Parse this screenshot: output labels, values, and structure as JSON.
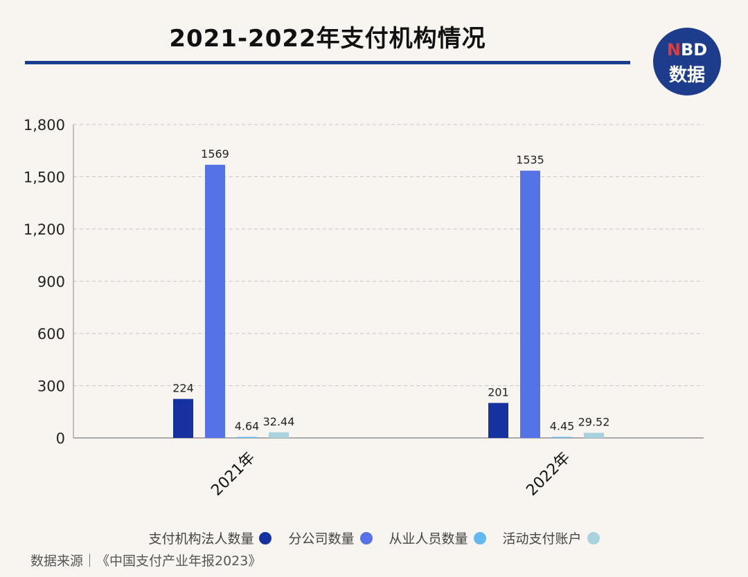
{
  "header": {
    "title": "2021-2022年支付机构情况",
    "logo_top": "NBD",
    "logo_top_accent": "N",
    "logo_top_rest": "BD",
    "logo_bottom": "数据"
  },
  "source": "数据来源｜《中国支付产业年报2023》",
  "colors": {
    "background": "#f8f5f1",
    "title_rule": "#1b3f8f",
    "series": [
      "#1532a0",
      "#5572e6",
      "#63b8f2",
      "#a7d3de"
    ]
  },
  "chart_data": {
    "type": "bar",
    "categories": [
      "2021年",
      "2022年"
    ],
    "series": [
      {
        "name": "支付机构法人数量",
        "values": [
          224,
          201
        ],
        "labels": [
          "224",
          "201"
        ]
      },
      {
        "name": "分公司数量",
        "values": [
          1569,
          1535
        ],
        "labels": [
          "1569",
          "1535"
        ]
      },
      {
        "name": "从业人员数量",
        "values": [
          4.64,
          4.45
        ],
        "labels": [
          "4.64",
          "4.45"
        ]
      },
      {
        "name": "活动支付账户",
        "values": [
          32.44,
          29.52
        ],
        "labels": [
          "32.44",
          "29.52"
        ]
      }
    ],
    "ylim": [
      0,
      1800
    ],
    "yticks": [
      0,
      300,
      600,
      900,
      1200,
      1500,
      1800
    ],
    "ytick_labels": [
      "0",
      "300",
      "600",
      "900",
      "1,200",
      "1,500",
      "1,800"
    ],
    "grid": true,
    "legend_position": "bottom"
  }
}
